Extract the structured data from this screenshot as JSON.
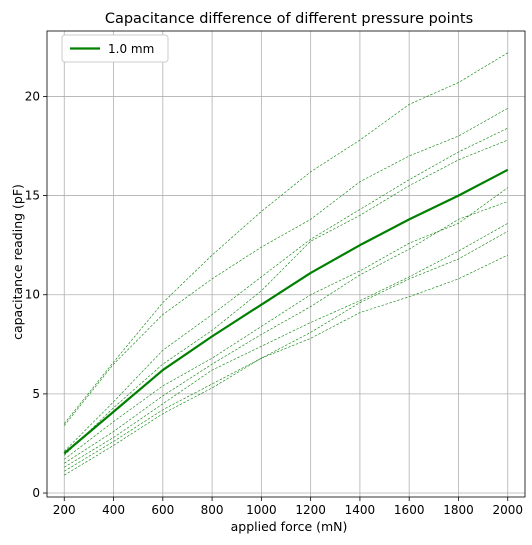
{
  "chart_data": {
    "type": "line",
    "title": "Capacitance difference of different pressure points",
    "xlabel": "applied force (mN)",
    "ylabel": "capacitance reading (pF)",
    "x": [
      200,
      400,
      600,
      800,
      1000,
      1200,
      1400,
      1600,
      1800,
      2000
    ],
    "xlim": [
      130,
      2070
    ],
    "ylim": [
      -0.2,
      23.3
    ],
    "xticks": [
      200,
      400,
      600,
      800,
      1000,
      1200,
      1400,
      1600,
      1800,
      2000
    ],
    "yticks": [
      0,
      5,
      10,
      15,
      20
    ],
    "grid": true,
    "legend_position": "top-left",
    "color": "#008000",
    "series": [
      {
        "name": "1.0 mm",
        "style": "solid-thick",
        "values": [
          2.0,
          4.1,
          6.2,
          7.9,
          9.5,
          11.1,
          12.5,
          13.8,
          15.0,
          16.3
        ]
      },
      {
        "style": "dashed-thin",
        "values": [
          3.5,
          6.6,
          9.6,
          12.0,
          14.2,
          16.2,
          17.8,
          19.6,
          20.7,
          22.2
        ]
      },
      {
        "style": "dashed-thin",
        "values": [
          3.4,
          6.5,
          9.0,
          10.8,
          12.4,
          13.8,
          15.7,
          17.0,
          18.0,
          19.4
        ]
      },
      {
        "style": "dashed-thin",
        "values": [
          2.1,
          4.6,
          7.2,
          9.0,
          10.9,
          12.8,
          14.3,
          15.8,
          17.2,
          18.4
        ]
      },
      {
        "style": "dashed-thin",
        "values": [
          1.9,
          4.3,
          6.5,
          8.2,
          10.2,
          12.7,
          14.0,
          15.5,
          16.8,
          17.8
        ]
      },
      {
        "style": "dashed-thin",
        "values": [
          1.7,
          3.6,
          5.4,
          6.8,
          8.4,
          10.0,
          11.2,
          12.6,
          13.6,
          15.4
        ]
      },
      {
        "style": "dashed-thin",
        "values": [
          1.5,
          3.1,
          4.9,
          6.5,
          8.0,
          9.4,
          11.0,
          12.3,
          13.8,
          14.7
        ]
      },
      {
        "style": "dashed-thin",
        "values": [
          1.3,
          2.8,
          4.5,
          6.2,
          7.4,
          8.6,
          9.7,
          10.9,
          12.2,
          13.6
        ]
      },
      {
        "style": "dashed-thin",
        "values": [
          1.1,
          2.6,
          4.2,
          5.5,
          6.8,
          8.1,
          9.6,
          10.8,
          11.8,
          13.2
        ]
      },
      {
        "style": "dashed-thin",
        "values": [
          0.9,
          2.4,
          4.0,
          5.3,
          6.8,
          7.8,
          9.1,
          9.9,
          10.8,
          12.0
        ]
      }
    ]
  }
}
